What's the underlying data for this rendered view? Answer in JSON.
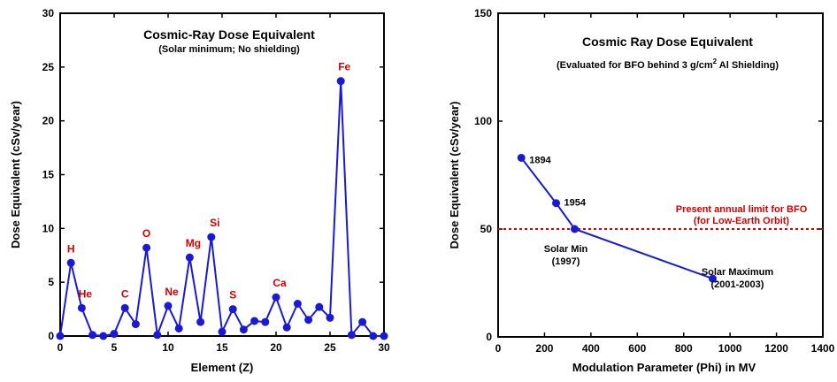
{
  "chart_data": [
    {
      "type": "line",
      "title": "Cosmic-Ray Dose Equivalent",
      "subtitle": "(Solar minimum; No shielding)",
      "xlabel": "Element (Z)",
      "ylabel": "Dose Equivalent (cSv/year)",
      "xlim": [
        0,
        30
      ],
      "ylim": [
        0,
        30
      ],
      "xticks": [
        0,
        5,
        10,
        15,
        20,
        25,
        30
      ],
      "yticks": [
        0,
        5,
        10,
        15,
        20,
        25,
        30
      ],
      "color": "#1a1ad6",
      "x": [
        0,
        1,
        2,
        3,
        4,
        5,
        6,
        7,
        8,
        9,
        10,
        11,
        12,
        13,
        14,
        15,
        16,
        17,
        18,
        19,
        20,
        21,
        22,
        23,
        24,
        25,
        26,
        27,
        28,
        29,
        30
      ],
      "y": [
        0,
        6.8,
        2.6,
        0.1,
        0,
        0.2,
        2.6,
        1.1,
        8.2,
        0.1,
        2.8,
        0.7,
        7.3,
        1.3,
        9.2,
        0.4,
        2.5,
        0.6,
        1.4,
        1.3,
        3.6,
        0.8,
        3.0,
        1.5,
        2.7,
        1.7,
        23.7,
        0.1,
        1.3,
        0,
        0
      ],
      "element_labels": [
        {
          "text": "H",
          "z": 1
        },
        {
          "text": "He",
          "z": 2
        },
        {
          "text": "C",
          "z": 6
        },
        {
          "text": "O",
          "z": 8
        },
        {
          "text": "Ne",
          "z": 10
        },
        {
          "text": "Mg",
          "z": 12
        },
        {
          "text": "Si",
          "z": 14
        },
        {
          "text": "S",
          "z": 16
        },
        {
          "text": "Ca",
          "z": 20
        },
        {
          "text": "Fe",
          "z": 26
        }
      ]
    },
    {
      "type": "line",
      "title": "Cosmic Ray Dose Equivalent",
      "subtitle_pre": "(Evaluated for BFO behind 3 g/cm",
      "subtitle_sup": "2",
      "subtitle_post": " Al Shielding)",
      "xlabel": "Modulation Parameter (Phi) in MV",
      "ylabel": "Dose Equivalent (cSv/year)",
      "xlim": [
        0,
        1400
      ],
      "ylim": [
        0,
        150
      ],
      "xticks": [
        0,
        200,
        400,
        600,
        800,
        1000,
        1200,
        1400
      ],
      "yticks": [
        0,
        50,
        100,
        150
      ],
      "color": "#1a1ad6",
      "points": [
        {
          "x": 100,
          "y": 83,
          "label": [
            "1894"
          ]
        },
        {
          "x": 250,
          "y": 62,
          "label": [
            "1954"
          ]
        },
        {
          "x": 330,
          "y": 50,
          "label": [
            "Solar Min",
            "(1997)"
          ]
        },
        {
          "x": 925,
          "y": 27,
          "label": [
            "Solar Maximum",
            "(2001-2003)"
          ]
        }
      ],
      "limit_line": {
        "y": 50,
        "color": "#d40000",
        "label": [
          "Present annual limit for BFO",
          "(for Low-Earth Orbit)"
        ]
      }
    }
  ]
}
